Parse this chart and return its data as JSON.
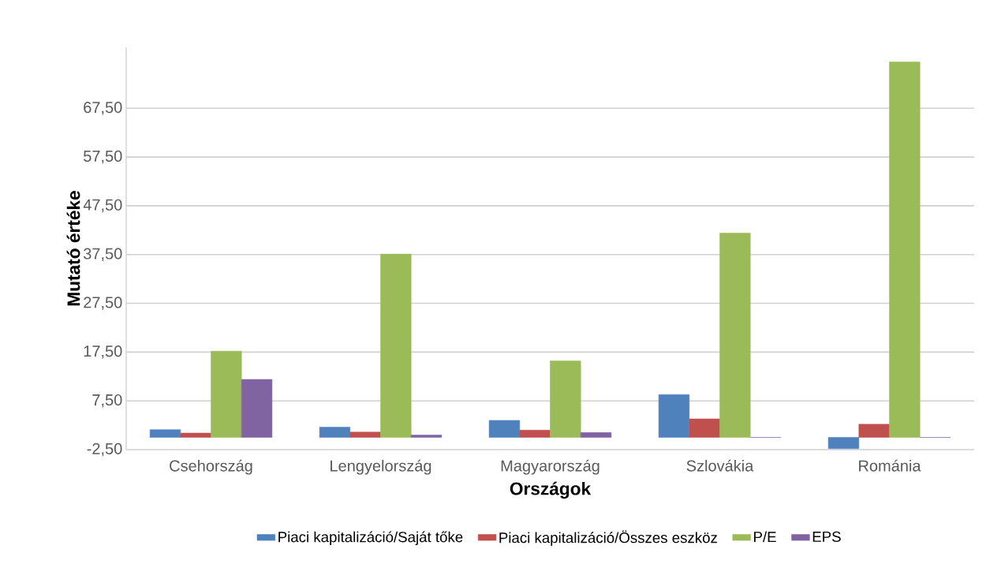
{
  "chart_data": {
    "type": "bar",
    "xlabel": "Országok",
    "ylabel": "Mutató értéke",
    "categories": [
      "Csehország",
      "Lengyelország",
      "Magyarország",
      "Szlovákia",
      "Románia"
    ],
    "series": [
      {
        "name": "Piaci kapitalizáció/Saját tőke",
        "color": "#4f81bd",
        "values": [
          1.6,
          2.1,
          3.5,
          8.8,
          -2.3
        ]
      },
      {
        "name": "Piaci kapitalizáció/Összes eszköz",
        "color": "#c0504d",
        "values": [
          0.9,
          1.1,
          1.5,
          3.8,
          2.7
        ]
      },
      {
        "name": "P/E",
        "color": "#9bbb59",
        "values": [
          17.7,
          37.6,
          15.7,
          41.9,
          77.0
        ]
      },
      {
        "name": "EPS",
        "color": "#8064a2",
        "values": [
          11.9,
          0.5,
          1.0,
          0.0,
          0.0
        ]
      }
    ],
    "ylim": [
      -2.5,
      80
    ],
    "yticks": [
      {
        "value": -2.5,
        "label": "-2,50"
      },
      {
        "value": 7.5,
        "label": "7,50"
      },
      {
        "value": 17.5,
        "label": "17,50"
      },
      {
        "value": 27.5,
        "label": "27,50"
      },
      {
        "value": 37.5,
        "label": "37,50"
      },
      {
        "value": 47.5,
        "label": "47,50"
      },
      {
        "value": 57.5,
        "label": "57,50"
      },
      {
        "value": 67.5,
        "label": "67,50"
      }
    ],
    "grid": "y",
    "legend": "bottom"
  }
}
